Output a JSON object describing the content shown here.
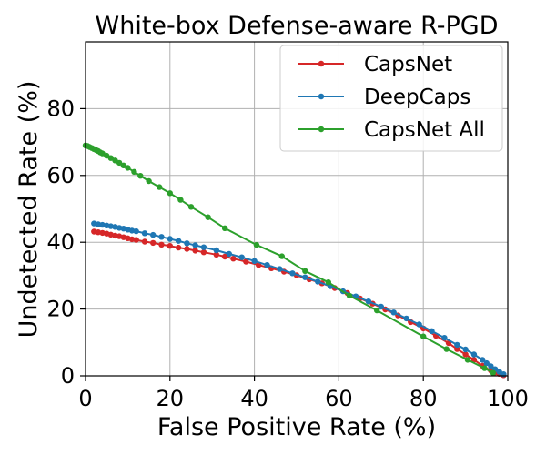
{
  "chart_data": {
    "type": "line",
    "title": "White-box Defense-aware R-PGD",
    "xlabel": "False Positive Rate (%)",
    "ylabel": "Undetected Rate (%)",
    "xlim": [
      0,
      100
    ],
    "ylim": [
      0,
      100
    ],
    "xticks": [
      "0",
      "20",
      "40",
      "60",
      "80",
      "100"
    ],
    "yticks": [
      "0",
      "20",
      "40",
      "60",
      "80"
    ],
    "xtick_values": [
      0,
      20,
      40,
      60,
      80,
      100
    ],
    "ytick_values": [
      0,
      20,
      40,
      60,
      80
    ],
    "grid": true,
    "legend": {
      "location": "top-right",
      "entries": [
        "CapsNet",
        "DeepCaps",
        "CapsNet All"
      ]
    },
    "series": [
      {
        "name": "CapsNet",
        "color": "#d62728",
        "x": [
          2,
          3,
          4,
          5,
          6,
          7,
          8,
          9,
          10,
          11,
          12,
          14,
          16,
          18,
          20,
          22,
          24,
          26,
          28,
          31,
          33,
          35,
          38,
          41,
          44,
          47,
          50,
          53,
          56,
          59,
          62,
          65,
          68,
          71,
          74,
          77,
          80,
          83,
          86,
          88,
          90,
          92,
          94,
          96,
          97,
          98,
          99
        ],
        "values": [
          43.2,
          43.0,
          42.8,
          42.6,
          42.3,
          42.0,
          41.8,
          41.5,
          41.2,
          40.9,
          40.7,
          40.2,
          39.8,
          39.3,
          38.9,
          38.4,
          38.0,
          37.5,
          37.0,
          36.3,
          35.7,
          35.1,
          34.2,
          33.2,
          32.2,
          31.2,
          30.1,
          28.9,
          27.7,
          26.3,
          24.8,
          23.2,
          21.6,
          19.9,
          18.1,
          16.1,
          14.2,
          12.0,
          9.8,
          8.0,
          6.4,
          4.8,
          3.0,
          1.6,
          1.0,
          0.6,
          0.2
        ]
      },
      {
        "name": "DeepCaps",
        "color": "#1f77b4",
        "x": [
          2,
          3,
          4,
          5,
          6,
          7,
          8,
          9,
          10,
          11,
          12,
          14,
          16,
          18,
          20,
          22,
          24,
          26,
          28,
          31,
          34,
          37,
          40,
          43,
          46,
          49,
          52,
          55,
          58,
          61,
          64,
          67,
          70,
          73,
          76,
          79,
          82,
          85,
          88,
          90,
          92,
          94,
          95,
          96,
          97,
          98,
          99
        ],
        "values": [
          45.6,
          45.4,
          45.2,
          45.0,
          44.8,
          44.6,
          44.3,
          44.1,
          43.8,
          43.5,
          43.3,
          42.7,
          42.2,
          41.6,
          41.0,
          40.4,
          39.7,
          39.1,
          38.5,
          37.6,
          36.5,
          35.5,
          34.4,
          33.2,
          32.0,
          30.7,
          29.5,
          28.2,
          26.8,
          25.3,
          23.8,
          22.3,
          20.7,
          19.0,
          17.2,
          15.4,
          13.4,
          11.4,
          9.3,
          7.9,
          6.4,
          4.8,
          3.8,
          2.9,
          2.0,
          1.2,
          0.5
        ]
      },
      {
        "name": "CapsNet All",
        "color": "#2ca02c",
        "x": [
          0,
          0.5,
          1,
          1.5,
          2,
          2.5,
          3,
          3.5,
          4,
          5,
          6,
          7,
          8,
          9,
          10,
          11.5,
          13,
          15,
          17.5,
          20,
          22.5,
          25,
          29,
          33,
          40.5,
          46.5,
          52,
          57.5,
          62.5,
          69,
          80,
          85.5,
          90.5,
          94.5,
          96.5
        ],
        "values": [
          69.0,
          68.8,
          68.5,
          68.2,
          67.9,
          67.6,
          67.3,
          66.9,
          66.6,
          65.9,
          65.2,
          64.5,
          63.8,
          63.0,
          62.3,
          61.1,
          59.9,
          58.3,
          56.5,
          54.7,
          52.7,
          50.6,
          47.5,
          44.2,
          39.2,
          35.8,
          31.4,
          28.0,
          24.0,
          19.6,
          11.8,
          8.0,
          4.8,
          2.3,
          0.9
        ]
      }
    ]
  }
}
